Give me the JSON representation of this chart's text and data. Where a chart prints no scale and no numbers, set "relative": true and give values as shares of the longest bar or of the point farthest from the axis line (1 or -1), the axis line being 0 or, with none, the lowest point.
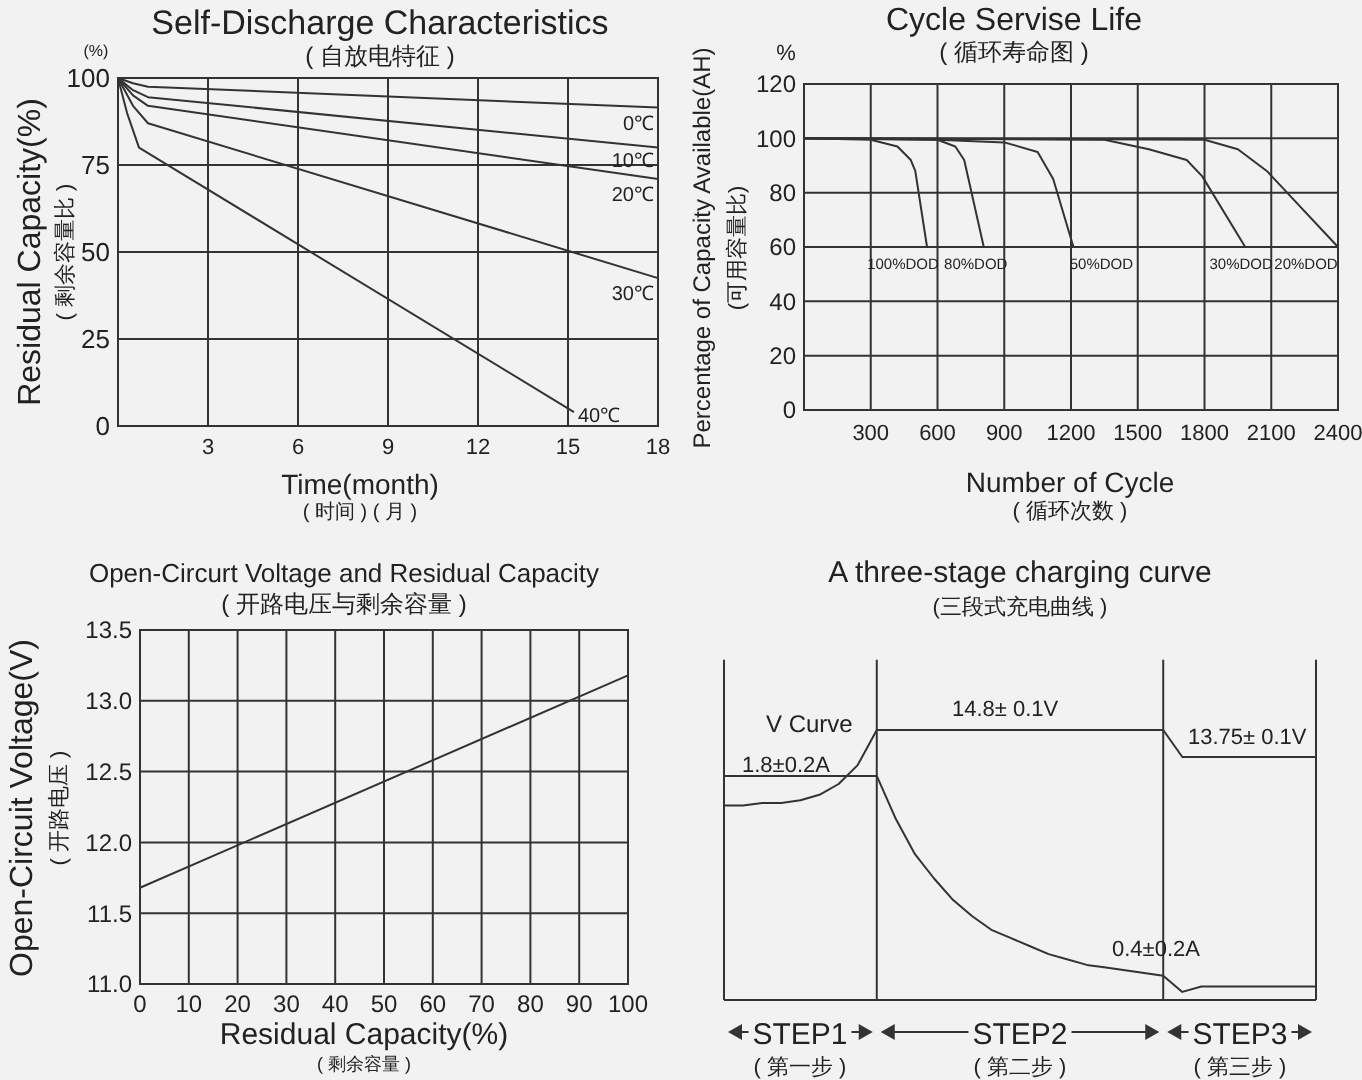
{
  "chart_data": [
    {
      "type": "line",
      "title": "Self-Discharge Characteristics",
      "subtitle": "( 自放电特征 )",
      "xlabel": "Time(month)",
      "ylabel": "Residual Capacity(%)",
      "annotations": [
        "(%)",
        "( 时间 ) ( 月 )",
        "( 剩余容量比 )"
      ],
      "xlim": [
        0,
        18
      ],
      "xticks": [
        3,
        6,
        9,
        12,
        15,
        18
      ],
      "ylim": [
        0,
        100
      ],
      "yticks": [
        0,
        25,
        50,
        75,
        100
      ],
      "grid": true,
      "series": [
        {
          "name": "0℃",
          "color": "#333333",
          "x": [
            0,
            0.5,
            1,
            18
          ],
          "values": [
            100,
            98.5,
            97.5,
            91.5
          ]
        },
        {
          "name": "10℃",
          "color": "#333333",
          "x": [
            0,
            0.5,
            1,
            18
          ],
          "values": [
            100,
            96.5,
            94.5,
            80
          ]
        },
        {
          "name": "20℃",
          "color": "#333333",
          "x": [
            0,
            0.5,
            1,
            18
          ],
          "values": [
            100,
            95,
            92,
            71
          ]
        },
        {
          "name": "30℃",
          "color": "#333333",
          "x": [
            0,
            0.5,
            1,
            18
          ],
          "values": [
            100,
            92,
            87,
            42.5
          ]
        },
        {
          "name": "40℃",
          "color": "#333333",
          "x": [
            0,
            0.3,
            0.7,
            15.2
          ],
          "values": [
            100,
            90,
            80,
            4
          ]
        }
      ]
    },
    {
      "type": "line",
      "title": "Cycle Servise Life",
      "subtitle": "( 循环寿命图 )",
      "xlabel": "Number of Cycle",
      "ylabel": "Percentage of Capacity Available(AH)",
      "annotations": [
        "%",
        "(可用容量比)",
        "( 循环次数 )"
      ],
      "xlim": [
        0,
        2400
      ],
      "xticks": [
        300,
        600,
        900,
        1200,
        1500,
        1800,
        2100,
        2400
      ],
      "ylim": [
        0,
        120
      ],
      "yticks": [
        0,
        20,
        40,
        60,
        80,
        100,
        120
      ],
      "grid": true,
      "series": [
        {
          "name": "100%DOD",
          "color": "#333333",
          "x": [
            0,
            300,
            420,
            480,
            500,
            553
          ],
          "values": [
            100,
            99.5,
            97,
            92,
            88,
            60
          ]
        },
        {
          "name": "80%DOD",
          "color": "#333333",
          "x": [
            0,
            600,
            680,
            720,
            808
          ],
          "values": [
            100,
            99.5,
            97,
            92,
            60
          ]
        },
        {
          "name": "50%DOD",
          "color": "#333333",
          "x": [
            0,
            600,
            900,
            1050,
            1120,
            1211
          ],
          "values": [
            100,
            99.5,
            98.5,
            95,
            85,
            60
          ]
        },
        {
          "name": "30%DOD",
          "color": "#333333",
          "x": [
            0,
            1350,
            1550,
            1720,
            1790,
            1983
          ],
          "values": [
            100,
            99.5,
            96,
            92,
            86,
            60
          ]
        },
        {
          "name": "20%DOD",
          "color": "#333333",
          "x": [
            0,
            1800,
            1950,
            2080,
            2400
          ],
          "values": [
            100,
            99.5,
            96,
            88,
            60
          ]
        }
      ]
    },
    {
      "type": "line",
      "title": "Open-Circurt Voltage and Residual Capacity",
      "subtitle": "( 开路电压与剩余容量 )",
      "xlabel": "Residual Capacity(%)",
      "ylabel": "Open-Circuit Voltage(V)",
      "annotations": [
        "( 开路电压 )",
        "( 剩余容量 )"
      ],
      "xlim": [
        0,
        100
      ],
      "xticks": [
        0,
        10,
        20,
        30,
        40,
        50,
        60,
        70,
        80,
        90,
        100
      ],
      "ylim": [
        11,
        13.5
      ],
      "yticks": [
        {
          "value": 11,
          "label": "11.0"
        },
        11.5,
        {
          "value": 12,
          "label": "12.0"
        },
        12.5,
        {
          "value": 13,
          "label": "13.0"
        },
        13.5
      ],
      "grid": true,
      "series": [
        {
          "color": "#333333",
          "x": [
            0,
            100
          ],
          "values": [
            11.68,
            13.18
          ]
        }
      ]
    },
    {
      "type": "line",
      "title": "A three-stage charging curve",
      "subtitle": "(三段式充电曲线 )",
      "relative": true,
      "annotations": [
        "1.8±0.2A",
        "14.8± 0.1V",
        "13.75± 0.1V",
        "0.4±0.2A",
        "STEP1",
        "( 第一步 )",
        "STEP2",
        "( 第二步 )",
        "STEP3",
        "( 第三步 )"
      ],
      "categories": [
        null,
        null,
        null,
        null,
        null,
        null,
        null,
        null,
        null,
        null,
        null,
        null,
        null,
        null,
        null,
        null,
        null,
        null,
        null,
        null,
        null,
        null,
        null,
        null,
        null,
        null,
        null,
        null,
        null,
        null,
        null,
        null
      ],
      "series": [
        {
          "name": "V Curve",
          "color": "#333333",
          "values": [
            0.72,
            0.72,
            0.73,
            0.73,
            0.74,
            0.76,
            0.8,
            0.87,
            1,
            1,
            1,
            1,
            1,
            1,
            1,
            1,
            1,
            1,
            1,
            1,
            1,
            1,
            1,
            1,
            0.9,
            0.9,
            0.9,
            0.9,
            0.9,
            0.9,
            0.9,
            0.9
          ]
        },
        {
          "color": "#333333",
          "values": [
            0.83,
            0.83,
            0.83,
            0.83,
            0.83,
            0.83,
            0.83,
            0.83,
            0.83,
            0.67,
            0.54,
            0.45,
            0.37,
            0.31,
            0.26,
            0.23,
            0.2,
            0.17,
            0.15,
            0.13,
            0.12,
            0.11,
            0.1,
            0.09,
            0.03,
            0.05,
            0.05,
            0.05,
            0.05,
            0.05,
            0.05,
            0.05
          ]
        }
      ]
    }
  ]
}
